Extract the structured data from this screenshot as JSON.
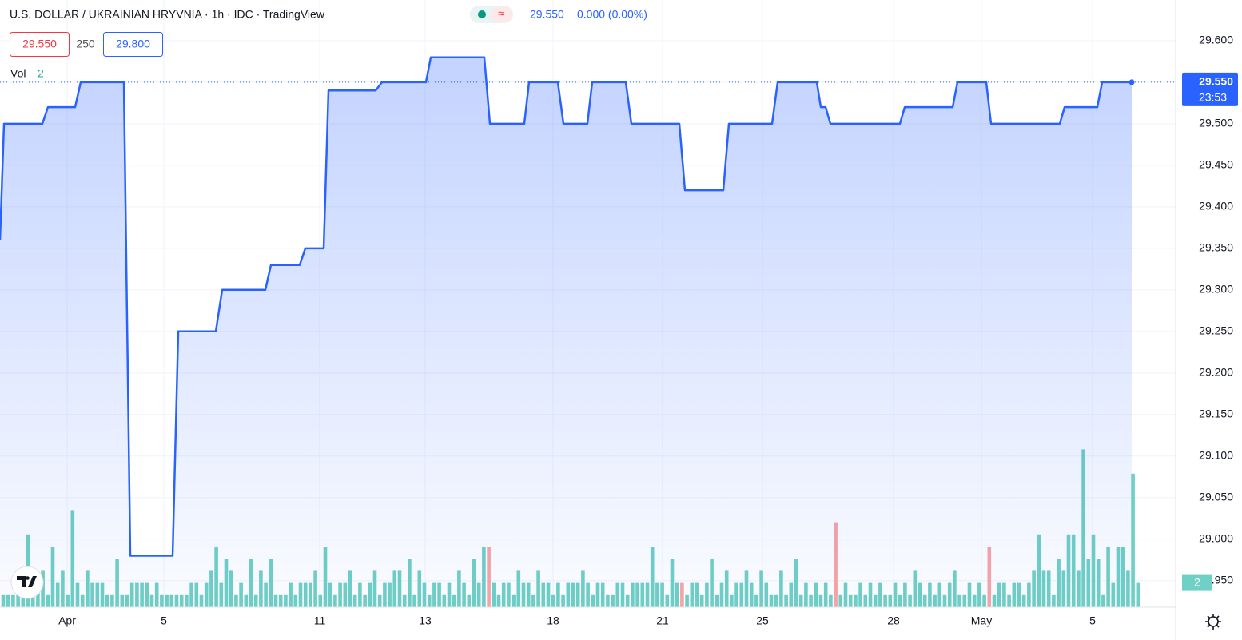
{
  "chart_data": {
    "type": "line",
    "title": "U.S. DOLLAR / UKRAINIAN HRYVNIA · 1h · IDC · TradingView",
    "last_price": "29.550",
    "change": "0.000 (0.00%)",
    "bid": "29.550",
    "spread": "250",
    "ask": "29.800",
    "volume_label": "Vol",
    "volume_last": "2",
    "countdown": "23:53",
    "grid": true,
    "xlim": [
      0,
      146
    ],
    "ylim": [
      28.918,
      29.649
    ],
    "xticks": [
      {
        "value": 8.4,
        "label": "Apr"
      },
      {
        "value": 20.5,
        "label": "5"
      },
      {
        "value": 40,
        "label": "11"
      },
      {
        "value": 53.2,
        "label": "13"
      },
      {
        "value": 69.2,
        "label": "18"
      },
      {
        "value": 82.9,
        "label": "21"
      },
      {
        "value": 95.4,
        "label": "25"
      },
      {
        "value": 111.8,
        "label": "28"
      },
      {
        "value": 122.8,
        "label": "May"
      },
      {
        "value": 136.7,
        "label": "5"
      }
    ],
    "yticks": [
      {
        "value": 28.95,
        "label": "28.950"
      },
      {
        "value": 29.0,
        "label": "29.000"
      },
      {
        "value": 29.05,
        "label": "29.050"
      },
      {
        "value": 29.1,
        "label": "29.100"
      },
      {
        "value": 29.15,
        "label": "29.150"
      },
      {
        "value": 29.2,
        "label": "29.200"
      },
      {
        "value": 29.25,
        "label": "29.250"
      },
      {
        "value": 29.3,
        "label": "29.300"
      },
      {
        "value": 29.35,
        "label": "29.350"
      },
      {
        "value": 29.4,
        "label": "29.400"
      },
      {
        "value": 29.45,
        "label": "29.450"
      },
      {
        "value": 29.5,
        "label": "29.500"
      },
      {
        "value": 29.55,
        "label": "29.550"
      },
      {
        "value": 29.6,
        "label": "29.600"
      }
    ],
    "series": [
      {
        "color": "#2962ff",
        "x": [
          0,
          0.5,
          5.3,
          6,
          9.4,
          10.1,
          15.5,
          16.3,
          21.6,
          22.3,
          27,
          27.8,
          33.2,
          33.9,
          37.5,
          38.2,
          40.5,
          41.1,
          47,
          47.8,
          53.3,
          53.9,
          60.6,
          61.3,
          65.6,
          66.2,
          69.8,
          70.5,
          73.5,
          74.1,
          78.3,
          79,
          85,
          85.7,
          90.5,
          91.2,
          96.6,
          97.3,
          102.2,
          102.7,
          103.3,
          103.9,
          112.6,
          113.2,
          119.2,
          119.8,
          123.4,
          124,
          132.6,
          133.2,
          137.3,
          137.9,
          141.6
        ],
        "values": [
          29.36,
          29.5,
          29.5,
          29.52,
          29.52,
          29.55,
          29.55,
          28.98,
          28.98,
          29.25,
          29.25,
          29.3,
          29.3,
          29.33,
          29.33,
          29.35,
          29.35,
          29.54,
          29.54,
          29.55,
          29.55,
          29.58,
          29.58,
          29.5,
          29.5,
          29.55,
          29.55,
          29.5,
          29.5,
          29.55,
          29.55,
          29.5,
          29.5,
          29.42,
          29.42,
          29.5,
          29.5,
          29.55,
          29.55,
          29.52,
          29.52,
          29.5,
          29.5,
          29.52,
          29.52,
          29.55,
          29.55,
          29.5,
          29.5,
          29.52,
          29.52,
          29.55,
          29.55
        ]
      }
    ],
    "volume": {
      "color": "#6fd0c5",
      "down_color": "#f7a5a5",
      "ylim": [
        0,
        50
      ],
      "down": [
        98,
        137,
        168,
        199
      ],
      "values": [
        1,
        1,
        1,
        1,
        1,
        6,
        1,
        2,
        3,
        1,
        5,
        2,
        3,
        1,
        8,
        2,
        1,
        3,
        2,
        2,
        2,
        1,
        1,
        4,
        1,
        1,
        2,
        2,
        2,
        2,
        1,
        2,
        1,
        1,
        1,
        1,
        1,
        1,
        2,
        2,
        1,
        2,
        3,
        5,
        2,
        4,
        3,
        1,
        2,
        1,
        4,
        1,
        3,
        2,
        4,
        1,
        1,
        1,
        2,
        1,
        2,
        2,
        2,
        3,
        1,
        5,
        2,
        1,
        2,
        2,
        3,
        1,
        2,
        1,
        2,
        3,
        1,
        2,
        2,
        3,
        3,
        1,
        4,
        1,
        3,
        2,
        1,
        2,
        2,
        1,
        2,
        1,
        3,
        2,
        1,
        4,
        2,
        5,
        5,
        2,
        1,
        2,
        2,
        1,
        3,
        2,
        2,
        1,
        3,
        2,
        2,
        1,
        2,
        1,
        2,
        2,
        2,
        3,
        2,
        1,
        2,
        2,
        1,
        1,
        2,
        2,
        1,
        2,
        2,
        2,
        2,
        5,
        2,
        2,
        1,
        4,
        2,
        2,
        1,
        2,
        2,
        1,
        2,
        4,
        1,
        2,
        3,
        1,
        2,
        2,
        3,
        2,
        1,
        3,
        2,
        1,
        1,
        3,
        1,
        2,
        4,
        1,
        2,
        1,
        2,
        1,
        2,
        1,
        7,
        1,
        2,
        1,
        1,
        2,
        1,
        2,
        1,
        2,
        1,
        1,
        2,
        1,
        2,
        1,
        3,
        2,
        1,
        2,
        1,
        2,
        1,
        2,
        3,
        1,
        1,
        2,
        1,
        2,
        1,
        5,
        1,
        2,
        2,
        1,
        2,
        2,
        1,
        2,
        3,
        6,
        3,
        3,
        1,
        4,
        3,
        6,
        6,
        3,
        13,
        4,
        6,
        4,
        1,
        5,
        2,
        5,
        5,
        3,
        11,
        2
      ]
    }
  }
}
